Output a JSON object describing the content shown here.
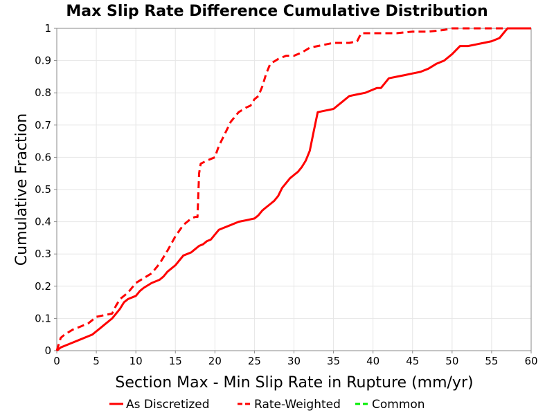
{
  "chart_data": {
    "type": "line",
    "title": "Max Slip Rate Difference Cumulative Distribution",
    "xlabel": "Section Max - Min Slip Rate in Rupture (mm/yr)",
    "ylabel": "Cumulative Fraction",
    "xlim": [
      0,
      60
    ],
    "ylim": [
      0,
      1
    ],
    "xticks": [
      "0",
      "5",
      "10",
      "15",
      "20",
      "25",
      "30",
      "35",
      "40",
      "45",
      "50",
      "55",
      "60"
    ],
    "yticks": [
      "0",
      "0.1",
      "0.2",
      "0.3",
      "0.4",
      "0.5",
      "0.6",
      "0.7",
      "0.8",
      "0.9",
      "1"
    ],
    "grid": true,
    "legend_position": "bottom",
    "series": [
      {
        "name": "As Discretized",
        "color": "#ff0000",
        "dash": "solid",
        "x": [
          0,
          0.5,
          1,
          2,
          3,
          4,
          4.5,
          5,
          5.5,
          6,
          7,
          7.5,
          8,
          8.5,
          9,
          10,
          10.5,
          11,
          12,
          13,
          13.5,
          14,
          14.5,
          15,
          15.5,
          16,
          16.5,
          17,
          17.5,
          18,
          18.5,
          19,
          19.5,
          20,
          20.5,
          21,
          22,
          23,
          24,
          25,
          25.5,
          26,
          26.5,
          27,
          27.5,
          28,
          28.5,
          29,
          29.5,
          30,
          30.5,
          31,
          31.5,
          32,
          32.5,
          33,
          34,
          35,
          35.5,
          36,
          37,
          38,
          39,
          40,
          40.5,
          41,
          42,
          43,
          44,
          45,
          46,
          47,
          48,
          49,
          50,
          51,
          52,
          53,
          54,
          55,
          56,
          57,
          58,
          60
        ],
        "y": [
          0,
          0.01,
          0.015,
          0.025,
          0.035,
          0.045,
          0.05,
          0.06,
          0.07,
          0.08,
          0.1,
          0.115,
          0.13,
          0.15,
          0.16,
          0.17,
          0.185,
          0.195,
          0.21,
          0.22,
          0.23,
          0.245,
          0.255,
          0.265,
          0.28,
          0.295,
          0.3,
          0.305,
          0.315,
          0.325,
          0.33,
          0.34,
          0.345,
          0.36,
          0.375,
          0.38,
          0.39,
          0.4,
          0.405,
          0.41,
          0.42,
          0.435,
          0.445,
          0.455,
          0.465,
          0.48,
          0.505,
          0.52,
          0.535,
          0.545,
          0.555,
          0.57,
          0.59,
          0.62,
          0.68,
          0.74,
          0.745,
          0.75,
          0.76,
          0.77,
          0.79,
          0.795,
          0.8,
          0.81,
          0.815,
          0.815,
          0.845,
          0.85,
          0.855,
          0.86,
          0.865,
          0.875,
          0.89,
          0.9,
          0.92,
          0.945,
          0.945,
          0.95,
          0.955,
          0.96,
          0.97,
          1.0,
          1.0,
          1.0
        ]
      },
      {
        "name": "Rate-Weighted",
        "color": "#ff0000",
        "dash": "dashed",
        "x": [
          0,
          0.5,
          1,
          2,
          3,
          4,
          5,
          6,
          7,
          7.5,
          8,
          9,
          10,
          11,
          12,
          13,
          14,
          15,
          16,
          17,
          17.5,
          17.8,
          18,
          18.2,
          19,
          20,
          20.5,
          21,
          21.5,
          22,
          22.5,
          23,
          24,
          24.5,
          25,
          25.5,
          26,
          26.5,
          27,
          28,
          29,
          30,
          31,
          32,
          33,
          35,
          37,
          38,
          38.5,
          39,
          41,
          43,
          45,
          47,
          49,
          50,
          52,
          54,
          56,
          58,
          60
        ],
        "y": [
          0,
          0.04,
          0.05,
          0.065,
          0.075,
          0.085,
          0.105,
          0.11,
          0.115,
          0.14,
          0.16,
          0.18,
          0.21,
          0.225,
          0.24,
          0.27,
          0.31,
          0.355,
          0.39,
          0.41,
          0.415,
          0.415,
          0.55,
          0.58,
          0.59,
          0.6,
          0.635,
          0.66,
          0.685,
          0.71,
          0.725,
          0.74,
          0.755,
          0.76,
          0.78,
          0.79,
          0.82,
          0.86,
          0.89,
          0.905,
          0.915,
          0.915,
          0.925,
          0.94,
          0.945,
          0.955,
          0.955,
          0.96,
          0.985,
          0.985,
          0.985,
          0.985,
          0.99,
          0.99,
          0.995,
          1.0,
          1.0,
          1.0,
          1.0,
          1.0,
          1.0
        ]
      },
      {
        "name": "Common",
        "color": "#00ee00",
        "dash": "dashed",
        "x": [],
        "y": []
      }
    ]
  }
}
